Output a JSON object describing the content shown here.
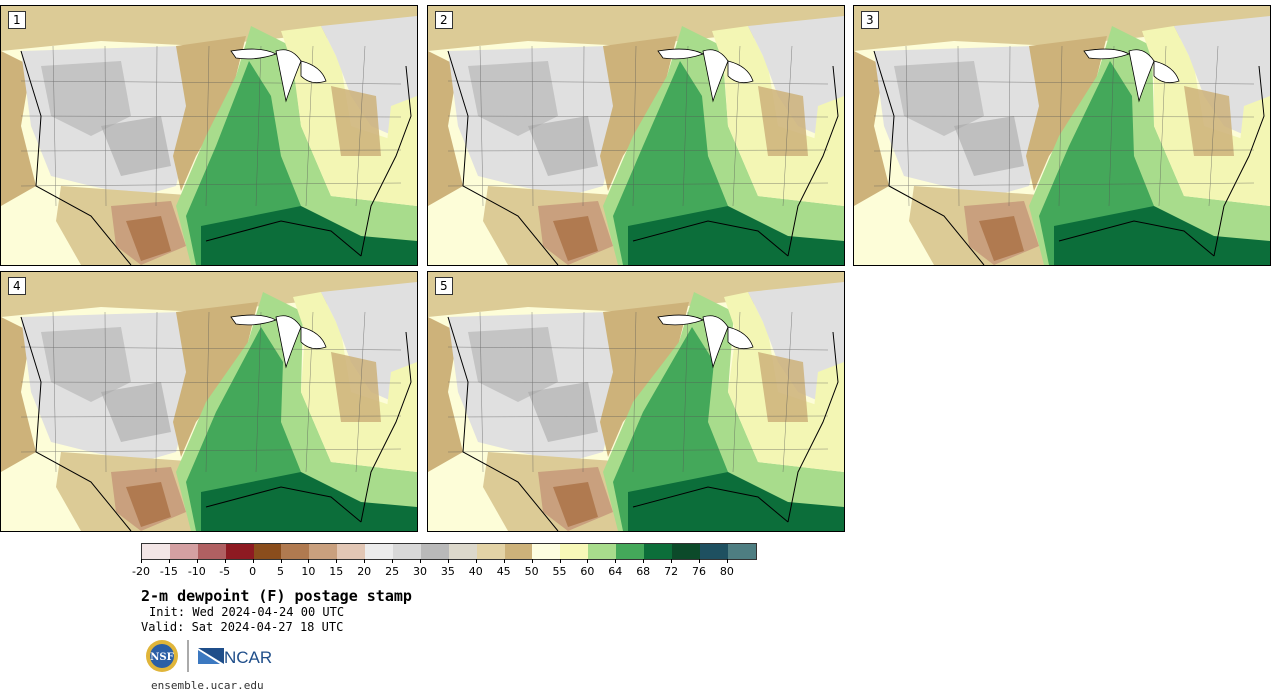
{
  "panels": [
    {
      "label": "1"
    },
    {
      "label": "2"
    },
    {
      "label": "3"
    },
    {
      "label": "4"
    },
    {
      "label": "5"
    }
  ],
  "colorbar": {
    "colors": [
      "#f3e6e6",
      "#d4a0a2",
      "#b06062",
      "#8e1a22",
      "#8a4d1c",
      "#b07a50",
      "#c9a07e",
      "#e2c7b5",
      "#ececec",
      "#d8d8d8",
      "#b9b9b9",
      "#dcd8cb",
      "#e3d3a6",
      "#cdb27a",
      "#fdfde0",
      "#f7f8b8",
      "#a8dc8c",
      "#44a85a",
      "#0c6e3a",
      "#0c4a2a",
      "#1e5060",
      "#4e7e82"
    ],
    "ticks": [
      "-20",
      "-15",
      "-10",
      "-5",
      "0",
      "5",
      "10",
      "15",
      "20",
      "25",
      "30",
      "35",
      "40",
      "45",
      "50",
      "55",
      "60",
      "64",
      "68",
      "72",
      "76",
      "80"
    ]
  },
  "title": "2-m dewpoint (F) postage stamp",
  "init": "Init: Wed 2024-04-24 00 UTC",
  "valid": "Valid: Sat 2024-04-27 18 UTC",
  "logos": {
    "nsf": "NSF",
    "ncar": "NCAR"
  },
  "url": "ensemble.ucar.edu"
}
